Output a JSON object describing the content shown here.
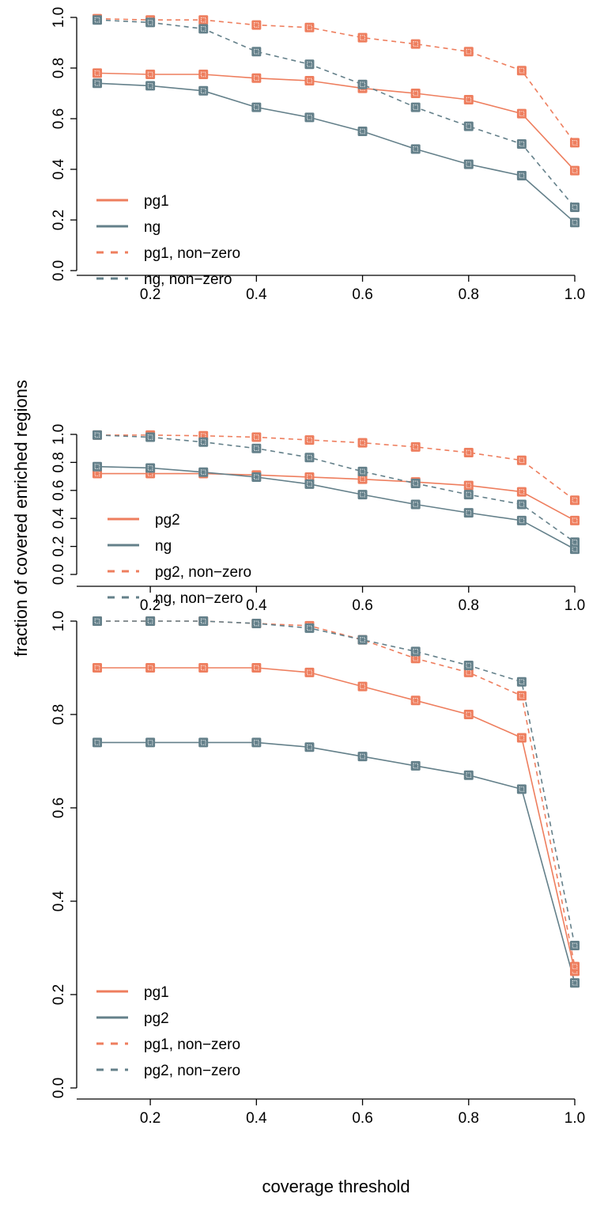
{
  "figure": {
    "ylabel": "fraction of covered enriched regions",
    "xlabel": "coverage threshold"
  },
  "colors": {
    "orange": "#EE7E5E",
    "slate": "#64808A"
  },
  "chart_data": [
    {
      "type": "line",
      "x": [
        0.1,
        0.2,
        0.3,
        0.4,
        0.5,
        0.6,
        0.7,
        0.8,
        0.9,
        1.0
      ],
      "xlim": [
        0.1,
        1.0
      ],
      "ylim": [
        0.0,
        1.0
      ],
      "xticks": [
        "0.2",
        "0.4",
        "0.6",
        "0.8",
        "1.0"
      ],
      "yticks": [
        "0.0",
        "0.2",
        "0.4",
        "0.6",
        "0.8",
        "1.0"
      ],
      "legend_position": "bottom-left",
      "series": [
        {
          "name": "pg1",
          "color": "#EE7E5E",
          "style": "solid",
          "values": [
            0.78,
            0.775,
            0.775,
            0.76,
            0.75,
            0.72,
            0.7,
            0.675,
            0.62,
            0.395
          ]
        },
        {
          "name": "ng",
          "color": "#64808A",
          "style": "solid",
          "values": [
            0.74,
            0.73,
            0.71,
            0.645,
            0.605,
            0.55,
            0.48,
            0.42,
            0.375,
            0.19
          ]
        },
        {
          "name": "pg1, non−zero",
          "color": "#EE7E5E",
          "style": "dashed",
          "values": [
            0.995,
            0.99,
            0.99,
            0.97,
            0.96,
            0.92,
            0.895,
            0.865,
            0.79,
            0.505
          ]
        },
        {
          "name": "ng, non−zero",
          "color": "#64808A",
          "style": "dashed",
          "values": [
            0.99,
            0.98,
            0.955,
            0.865,
            0.815,
            0.735,
            0.645,
            0.57,
            0.5,
            0.25
          ]
        }
      ]
    },
    {
      "type": "line",
      "x": [
        0.1,
        0.2,
        0.3,
        0.4,
        0.5,
        0.6,
        0.7,
        0.8,
        0.9,
        1.0
      ],
      "xlim": [
        0.1,
        1.0
      ],
      "ylim": [
        0.0,
        1.0
      ],
      "xticks": [
        "0.2",
        "0.4",
        "0.6",
        "0.8",
        "1.0"
      ],
      "yticks": [
        "0.0",
        "0.2",
        "0.4",
        "0.6",
        "0.8",
        "1.0"
      ],
      "legend_position": "bottom-left",
      "series": [
        {
          "name": "pg2",
          "color": "#EE7E5E",
          "style": "solid",
          "values": [
            0.72,
            0.72,
            0.72,
            0.71,
            0.695,
            0.68,
            0.66,
            0.635,
            0.59,
            0.385
          ]
        },
        {
          "name": "ng",
          "color": "#64808A",
          "style": "solid",
          "values": [
            0.77,
            0.76,
            0.73,
            0.695,
            0.645,
            0.57,
            0.5,
            0.44,
            0.385,
            0.18
          ]
        },
        {
          "name": "pg2, non−zero",
          "color": "#EE7E5E",
          "style": "dashed",
          "values": [
            0.995,
            0.995,
            0.99,
            0.98,
            0.96,
            0.94,
            0.91,
            0.87,
            0.815,
            0.53
          ]
        },
        {
          "name": "ng, non−zero",
          "color": "#64808A",
          "style": "dashed",
          "values": [
            0.995,
            0.98,
            0.945,
            0.9,
            0.835,
            0.735,
            0.65,
            0.57,
            0.5,
            0.23
          ]
        }
      ]
    },
    {
      "type": "line",
      "x": [
        0.1,
        0.2,
        0.3,
        0.4,
        0.5,
        0.6,
        0.7,
        0.8,
        0.9,
        1.0
      ],
      "xlim": [
        0.1,
        1.0
      ],
      "ylim": [
        0.0,
        1.0
      ],
      "xticks": [
        "0.2",
        "0.4",
        "0.6",
        "0.8",
        "1.0"
      ],
      "yticks": [
        "0.0",
        "0.2",
        "0.4",
        "0.6",
        "0.8",
        "1.0"
      ],
      "legend_position": "bottom-left",
      "series": [
        {
          "name": "pg1",
          "color": "#EE7E5E",
          "style": "solid",
          "values": [
            0.9,
            0.9,
            0.9,
            0.9,
            0.89,
            0.86,
            0.83,
            0.8,
            0.75,
            0.25
          ]
        },
        {
          "name": "pg2",
          "color": "#64808A",
          "style": "solid",
          "values": [
            0.74,
            0.74,
            0.74,
            0.74,
            0.73,
            0.71,
            0.69,
            0.67,
            0.64,
            0.225
          ]
        },
        {
          "name": "pg1, non−zero",
          "color": "#EE7E5E",
          "style": "dashed",
          "values": [
            1.0,
            1.0,
            1.0,
            0.995,
            0.99,
            0.96,
            0.92,
            0.89,
            0.84,
            0.26
          ]
        },
        {
          "name": "pg2, non−zero",
          "color": "#64808A",
          "style": "dashed",
          "values": [
            1.0,
            1.0,
            1.0,
            0.995,
            0.985,
            0.96,
            0.935,
            0.905,
            0.87,
            0.305
          ]
        }
      ]
    }
  ]
}
